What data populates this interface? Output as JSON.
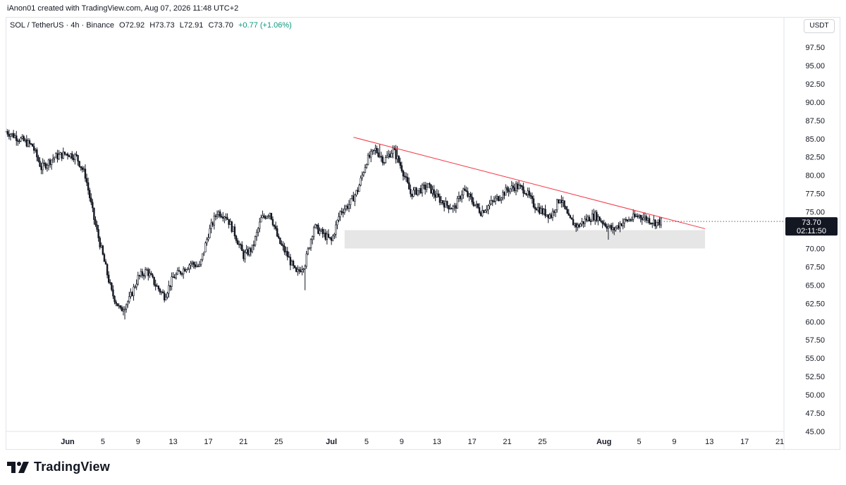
{
  "credit": "iAnon01 created with TradingView.com, Aug 07, 2026 11:48 UTC+2",
  "legend": {
    "symbol": "SOL / TetherUS · 4h · Binance",
    "open": "O72.92",
    "high": "H73.73",
    "low": "L72.91",
    "close": "C73.70",
    "change": "+0.77 (+1.06%)",
    "change_color": "#089981"
  },
  "currency_button": "USDT",
  "brand": "TradingView",
  "price_tag": {
    "price": "73.70",
    "countdown": "02:11:50",
    "bg": "#131722",
    "fg": "#ffffff"
  },
  "colors": {
    "candle_up": "#131722",
    "candle_down": "#131722",
    "trendline": "#f23645",
    "support_zone": "#e6e6e6"
  },
  "chart_data": {
    "type": "candlestick",
    "symbol": "SOL / TetherUS",
    "interval": "4h",
    "exchange": "Binance",
    "y_ticks": [
      97.5,
      95,
      92.5,
      90,
      87.5,
      85,
      82.5,
      80,
      77.5,
      75,
      72.5,
      70,
      67.5,
      65,
      62.5,
      60,
      57.5,
      55,
      52.5,
      50,
      47.5,
      45
    ],
    "ylim": [
      45,
      100
    ],
    "x_ticks": [
      "Jun",
      "5",
      "9",
      "13",
      "17",
      "21",
      "25",
      "Jul",
      "5",
      "9",
      "13",
      "17",
      "21",
      "25",
      "Aug",
      "5",
      "9",
      "13",
      "17",
      "21"
    ],
    "x_tick_days": [
      0,
      4,
      8,
      12,
      16,
      20,
      24,
      30,
      34,
      38,
      42,
      46,
      50,
      54,
      61,
      65,
      69,
      73,
      77,
      81
    ],
    "x_bold_ticks": [
      "Jun",
      "Jul",
      "Aug"
    ],
    "xlim_days": [
      -7,
      83
    ],
    "price_path": [
      [
        -7,
        86
      ],
      [
        -5.5,
        85
      ],
      [
        -4,
        84
      ],
      [
        -3,
        81
      ],
      [
        -1.5,
        82.5
      ],
      [
        0,
        83
      ],
      [
        1,
        82.5
      ],
      [
        2,
        80
      ],
      [
        3,
        74
      ],
      [
        4,
        69
      ],
      [
        5,
        64
      ],
      [
        6,
        61.5
      ],
      [
        7,
        63
      ],
      [
        8,
        66
      ],
      [
        9,
        67
      ],
      [
        10,
        65
      ],
      [
        11,
        63.5
      ],
      [
        12,
        66
      ],
      [
        13,
        67
      ],
      [
        14,
        68
      ],
      [
        15,
        67.5
      ],
      [
        16,
        72
      ],
      [
        17,
        75
      ],
      [
        18,
        74.5
      ],
      [
        19,
        72
      ],
      [
        20,
        69
      ],
      [
        21,
        70
      ],
      [
        22,
        74
      ],
      [
        23,
        75
      ],
      [
        24,
        71
      ],
      [
        25,
        69
      ],
      [
        26,
        66.5
      ],
      [
        27,
        68
      ],
      [
        28,
        73
      ],
      [
        29,
        72
      ],
      [
        30,
        71
      ],
      [
        31,
        75
      ],
      [
        32,
        76
      ],
      [
        33,
        78
      ],
      [
        34,
        82
      ],
      [
        35,
        83.5
      ],
      [
        36,
        82
      ],
      [
        37,
        83.5
      ],
      [
        38,
        81
      ],
      [
        39,
        77.5
      ],
      [
        40,
        78
      ],
      [
        41,
        78.5
      ],
      [
        42,
        77
      ],
      [
        43,
        76
      ],
      [
        44,
        75.5
      ],
      [
        45,
        78
      ],
      [
        46,
        76.5
      ],
      [
        47,
        75
      ],
      [
        48,
        76
      ],
      [
        49,
        77
      ],
      [
        50,
        78
      ],
      [
        51,
        78.5
      ],
      [
        52,
        78
      ],
      [
        53,
        76
      ],
      [
        54,
        75
      ],
      [
        55,
        74.5
      ],
      [
        56,
        77
      ],
      [
        57,
        74
      ],
      [
        58,
        73
      ],
      [
        59,
        74
      ],
      [
        60,
        74.5
      ],
      [
        61,
        73.5
      ],
      [
        62,
        72.5
      ],
      [
        63,
        73.5
      ],
      [
        64,
        74
      ],
      [
        65,
        74.5
      ],
      [
        66,
        74
      ],
      [
        67,
        73.5
      ],
      [
        67.5,
        73.7
      ]
    ],
    "lows": [
      [
        6.5,
        60.3
      ],
      [
        27,
        64.3
      ],
      [
        61.5,
        71.2
      ]
    ],
    "highs": [
      [
        35.5,
        84.2
      ],
      [
        37.5,
        84
      ]
    ],
    "trendline": [
      [
        32.5,
        85.2
      ],
      [
        72.5,
        72.7
      ]
    ],
    "support_zone": {
      "x_days": [
        31.5,
        72.5
      ],
      "price_range": [
        70,
        72.5
      ]
    },
    "last_price": 73.7
  }
}
